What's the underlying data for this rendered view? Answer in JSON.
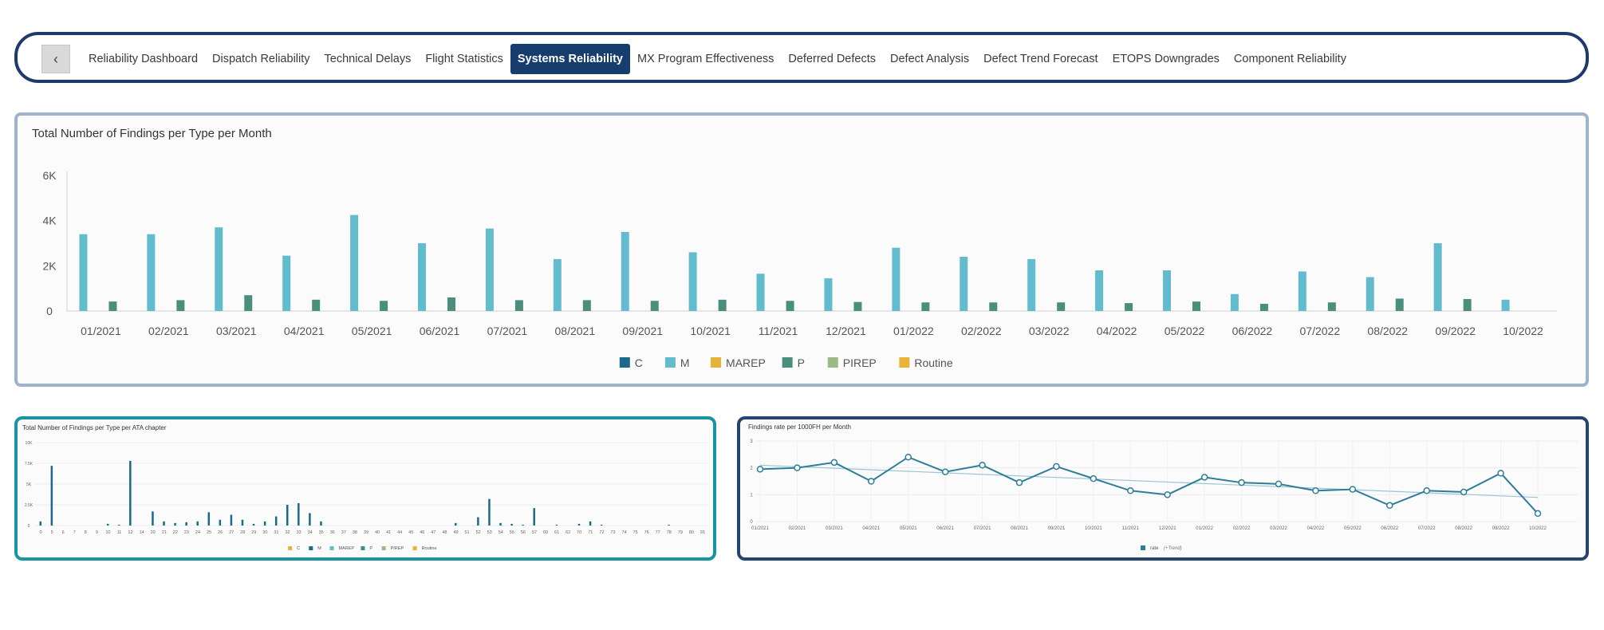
{
  "nav": {
    "back_label": "‹",
    "back_icon": "chevron-left-icon",
    "tabs": [
      {
        "label": "Reliability Dashboard",
        "active": false
      },
      {
        "label": "Dispatch Reliability",
        "active": false
      },
      {
        "label": "Technical Delays",
        "active": false
      },
      {
        "label": "Flight Statistics",
        "active": false
      },
      {
        "label": "Systems Reliability",
        "active": true
      },
      {
        "label": "MX Program Effectiveness",
        "active": false
      },
      {
        "label": "Deferred Defects",
        "active": false
      },
      {
        "label": "Defect Analysis",
        "active": false
      },
      {
        "label": "Defect Trend Forecast",
        "active": false
      },
      {
        "label": "ETOPS Downgrades",
        "active": false
      },
      {
        "label": "Component Reliability",
        "active": false
      }
    ],
    "active_color": "#163d6e"
  },
  "charts": {
    "monthly": {
      "title": "Total Number of Findings per Type per Month",
      "chart_data": {
        "type": "bar",
        "title": "Total Number of Findings per Type per Month",
        "categories": [
          "01/2021",
          "02/2021",
          "03/2021",
          "04/2021",
          "05/2021",
          "06/2021",
          "07/2021",
          "08/2021",
          "09/2021",
          "10/2021",
          "11/2021",
          "12/2021",
          "01/2022",
          "02/2022",
          "03/2022",
          "04/2022",
          "05/2022",
          "06/2022",
          "07/2022",
          "08/2022",
          "09/2022",
          "10/2022"
        ],
        "ylim": [
          0,
          6000
        ],
        "yticks": [
          {
            "value": 0,
            "label": "0"
          },
          {
            "value": 2000,
            "label": "2K"
          },
          {
            "value": 4000,
            "label": "4K"
          },
          {
            "value": 6000,
            "label": "6K"
          }
        ],
        "series": [
          {
            "name": "C",
            "color": "#1b6a8c",
            "values": [
              0,
              0,
              0,
              0,
              0,
              0,
              0,
              0,
              0,
              0,
              0,
              0,
              0,
              0,
              0,
              0,
              0,
              0,
              0,
              0,
              0,
              0
            ]
          },
          {
            "name": "M",
            "color": "#63bccd",
            "values": [
              3400,
              3400,
              3700,
              2450,
              4250,
              3000,
              3650,
              2300,
              3500,
              2600,
              1650,
              1450,
              2800,
              2400,
              2300,
              1800,
              1800,
              750,
              1750,
              1500,
              3000,
              500
            ]
          },
          {
            "name": "MAREP",
            "color": "#e6b23a",
            "values": [
              0,
              0,
              0,
              0,
              0,
              0,
              0,
              0,
              0,
              0,
              0,
              0,
              0,
              0,
              0,
              0,
              0,
              0,
              0,
              0,
              0,
              0
            ]
          },
          {
            "name": "P",
            "color": "#4a8f7e",
            "values": [
              420,
              480,
              700,
              500,
              450,
              600,
              480,
              480,
              450,
              500,
              450,
              400,
              380,
              380,
              380,
              350,
              420,
              320,
              380,
              550,
              530,
              0
            ]
          },
          {
            "name": "PIREP",
            "color": "#9cba86",
            "values": [
              0,
              0,
              0,
              0,
              0,
              0,
              0,
              0,
              0,
              0,
              0,
              0,
              0,
              0,
              0,
              0,
              0,
              0,
              0,
              0,
              0,
              0
            ]
          },
          {
            "name": "Routine",
            "color": "#e8b336",
            "values": [
              0,
              0,
              0,
              0,
              0,
              0,
              0,
              0,
              0,
              0,
              0,
              0,
              0,
              0,
              0,
              0,
              0,
              0,
              0,
              0,
              0,
              0
            ]
          }
        ],
        "legend_position": "bottom",
        "grid": false
      }
    },
    "ata": {
      "title": "Total Number of Findings per Type per ATA chapter",
      "chart_data": {
        "type": "bar",
        "title": "Total Number of Findings per Type per ATA chapter",
        "categories": [
          "0",
          "5",
          "6",
          "7",
          "8",
          "9",
          "10",
          "11",
          "12",
          "14",
          "20",
          "21",
          "22",
          "23",
          "24",
          "25",
          "26",
          "27",
          "28",
          "29",
          "30",
          "31",
          "32",
          "33",
          "34",
          "35",
          "36",
          "37",
          "38",
          "39",
          "40",
          "41",
          "44",
          "45",
          "46",
          "47",
          "48",
          "49",
          "51",
          "52",
          "53",
          "54",
          "55",
          "56",
          "57",
          "60",
          "61",
          "62",
          "70",
          "71",
          "72",
          "73",
          "74",
          "75",
          "76",
          "77",
          "78",
          "79",
          "80",
          "91"
        ],
        "ylim": [
          0,
          10000
        ],
        "yticks": [
          {
            "value": 0,
            "label": "0"
          },
          {
            "value": 2500,
            "label": "2.5K"
          },
          {
            "value": 5000,
            "label": "5K"
          },
          {
            "value": 7500,
            "label": "7.5K"
          },
          {
            "value": 10000,
            "label": "10K"
          }
        ],
        "series": [
          {
            "name": "C",
            "color": "#e6b23a",
            "values": [
              0,
              0,
              0,
              0,
              0,
              0,
              0,
              0,
              0,
              0,
              0,
              0,
              0,
              0,
              0,
              0,
              0,
              0,
              0,
              0,
              0,
              0,
              0,
              0,
              0,
              0,
              0,
              0,
              0,
              0,
              0,
              0,
              0,
              0,
              0,
              0,
              0,
              0,
              0,
              0,
              0,
              0,
              0,
              0,
              0,
              0,
              0,
              0,
              0,
              0,
              0,
              0,
              0,
              0,
              0,
              0,
              0,
              0,
              0,
              0
            ]
          },
          {
            "name": "M",
            "color": "#1b6a8c",
            "values": [
              500,
              7200,
              0,
              0,
              0,
              0,
              200,
              100,
              7800,
              0,
              1700,
              500,
              300,
              400,
              500,
              1600,
              700,
              1300,
              700,
              200,
              500,
              1100,
              2500,
              2700,
              1500,
              500,
              0,
              0,
              0,
              0,
              0,
              0,
              0,
              0,
              0,
              0,
              0,
              300,
              0,
              1000,
              3200,
              300,
              200,
              100,
              2100,
              0,
              100,
              0,
              200,
              500,
              100,
              0,
              0,
              0,
              0,
              0,
              100,
              0,
              0,
              0
            ]
          },
          {
            "name": "MAREP",
            "color": "#63bccd",
            "values": [
              0,
              0,
              0,
              0,
              0,
              0,
              0,
              0,
              0,
              0,
              0,
              0,
              0,
              0,
              0,
              0,
              0,
              0,
              0,
              0,
              0,
              0,
              0,
              0,
              0,
              0,
              0,
              0,
              0,
              0,
              0,
              0,
              0,
              0,
              0,
              0,
              0,
              0,
              0,
              0,
              0,
              0,
              0,
              0,
              0,
              0,
              0,
              0,
              0,
              0,
              0,
              0,
              0,
              0,
              0,
              0,
              0,
              0,
              0,
              0
            ]
          },
          {
            "name": "P",
            "color": "#3d8c8f",
            "values": [
              0,
              0,
              0,
              0,
              0,
              0,
              0,
              0,
              0,
              0,
              0,
              0,
              0,
              0,
              0,
              0,
              0,
              0,
              0,
              0,
              0,
              0,
              0,
              0,
              0,
              0,
              0,
              0,
              0,
              0,
              0,
              0,
              0,
              0,
              0,
              0,
              0,
              0,
              0,
              0,
              0,
              0,
              0,
              0,
              0,
              0,
              0,
              0,
              0,
              0,
              0,
              0,
              0,
              0,
              0,
              0,
              0,
              0,
              0,
              0
            ]
          },
          {
            "name": "PIREP",
            "color": "#9cba86",
            "values": [
              0,
              0,
              0,
              0,
              0,
              0,
              0,
              0,
              0,
              0,
              0,
              0,
              0,
              0,
              0,
              0,
              0,
              0,
              0,
              0,
              0,
              0,
              0,
              0,
              0,
              0,
              0,
              0,
              0,
              0,
              0,
              0,
              0,
              0,
              0,
              0,
              0,
              0,
              0,
              0,
              0,
              0,
              0,
              0,
              0,
              0,
              0,
              0,
              0,
              0,
              0,
              0,
              0,
              0,
              0,
              0,
              0,
              0,
              0,
              0
            ]
          },
          {
            "name": "Routine",
            "color": "#e8b336",
            "values": [
              0,
              0,
              0,
              0,
              0,
              0,
              0,
              0,
              0,
              0,
              0,
              0,
              0,
              0,
              0,
              0,
              0,
              0,
              0,
              0,
              0,
              0,
              0,
              0,
              0,
              0,
              0,
              0,
              0,
              0,
              0,
              0,
              0,
              0,
              0,
              0,
              0,
              0,
              0,
              0,
              0,
              0,
              0,
              0,
              0,
              0,
              0,
              0,
              0,
              0,
              0,
              0,
              0,
              0,
              0,
              0,
              0,
              0,
              0,
              0
            ]
          }
        ],
        "legend_position": "bottom",
        "grid": true
      }
    },
    "rate": {
      "title": "Findings rate per 1000FH per Month",
      "chart_data": {
        "type": "line",
        "title": "Findings rate per 1000FH per Month",
        "categories": [
          "01/2021",
          "02/2021",
          "03/2021",
          "04/2021",
          "05/2021",
          "06/2021",
          "07/2021",
          "08/2021",
          "09/2021",
          "10/2021",
          "11/2021",
          "12/2021",
          "01/2022",
          "02/2022",
          "03/2022",
          "04/2022",
          "05/2022",
          "06/2022",
          "07/2022",
          "08/2022",
          "09/2022",
          "10/2022"
        ],
        "ylim": [
          0,
          3
        ],
        "yticks": [
          {
            "value": 0,
            "label": "0"
          },
          {
            "value": 1,
            "label": "1"
          },
          {
            "value": 2,
            "label": "2"
          },
          {
            "value": 3,
            "label": "3"
          }
        ],
        "series": [
          {
            "name": "rate",
            "color": "#2e7d99",
            "values": [
              1.95,
              2.0,
              2.2,
              1.5,
              2.4,
              1.85,
              2.1,
              1.45,
              2.05,
              1.6,
              1.15,
              1.0,
              1.65,
              1.45,
              1.4,
              1.15,
              1.2,
              0.6,
              1.15,
              1.1,
              1.8,
              0.3
            ]
          }
        ],
        "trend": {
          "label": "(+Trend)",
          "color": "#9cc5d3",
          "start": 2.1,
          "end": 0.9
        },
        "legend_position": "bottom",
        "grid": true
      }
    }
  }
}
